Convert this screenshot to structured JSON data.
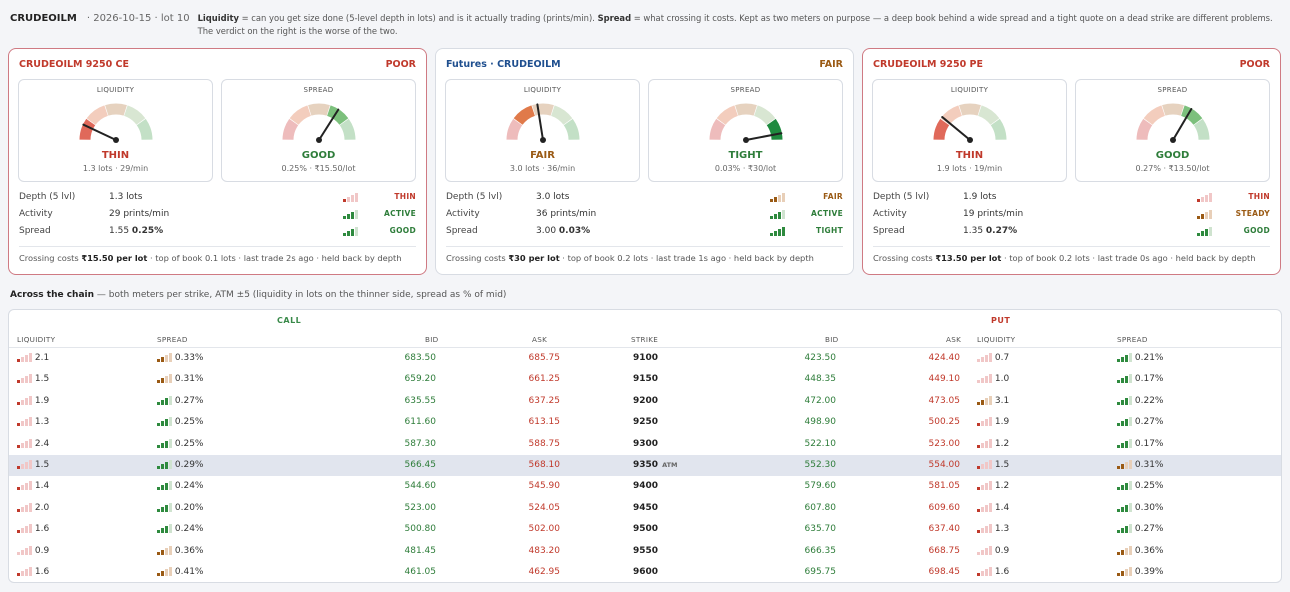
{
  "header": {
    "symbol": "CRUDEOILM",
    "meta": "· 2026-10-15 · lot 10",
    "liquidity_term": "Liquidity",
    "liquidity_text": " = can you get size done (5-level depth in lots) and is it actually trading (prints/min). ",
    "spread_term": "Spread",
    "spread_text": " = what crossing it costs. Kept as two meters on purpose — a deep book behind a wide spread and a tight quote on a dead strike are different problems. The verdict on the right is the worse of the two."
  },
  "colors": {
    "good": "#2e7d3a",
    "fair": "#9a5a14",
    "poor": "#c0392b",
    "blue": "#1f4f8f"
  },
  "cards": [
    {
      "title": "CRUDEOILM 9250 CE",
      "title_tone": "poor",
      "verdict": "POOR",
      "verdict_tone": "poor",
      "liq": {
        "label": "LIQUIDITY",
        "value": "THIN",
        "tone": "poor",
        "sub": "1.3 lots · 29/min",
        "level": 1,
        "needle": 0.14
      },
      "spr": {
        "label": "SPREAD",
        "value": "GOOD",
        "tone": "good",
        "sub": "0.25% · ₹15.50/lot",
        "level": 4,
        "needle": 0.68
      },
      "rows": [
        {
          "label": "Depth (5 lvl)",
          "value": "1.3 lots",
          "bold": "",
          "bars": 1,
          "tag": "THIN",
          "tone": "poor"
        },
        {
          "label": "Activity",
          "value": "29 prints/min",
          "bold": "",
          "bars": 3,
          "tag": "ACTIVE",
          "tone": "good"
        },
        {
          "label": "Spread",
          "value": "1.55 ",
          "bold": "0.25%",
          "bars": 3,
          "tag": "GOOD",
          "tone": "good"
        }
      ],
      "foot_pre": "Crossing costs ",
      "foot_bold": "₹15.50 per lot",
      "foot_post": " · top of book 0.1 lots · last trade 2s ago · held back by depth"
    },
    {
      "title": "Futures · CRUDEOILM",
      "title_tone": "blue",
      "verdict": "FAIR",
      "verdict_tone": "fair",
      "liq": {
        "label": "LIQUIDITY",
        "value": "FAIR",
        "tone": "fair",
        "sub": "3.0 lots · 36/min",
        "level": 2,
        "needle": 0.45
      },
      "spr": {
        "label": "SPREAD",
        "value": "TIGHT",
        "tone": "good",
        "sub": "0.03% · ₹30/lot",
        "level": 5,
        "needle": 0.94
      },
      "rows": [
        {
          "label": "Depth (5 lvl)",
          "value": "3.0 lots",
          "bold": "",
          "bars": 2,
          "tag": "FAIR",
          "tone": "fair"
        },
        {
          "label": "Activity",
          "value": "36 prints/min",
          "bold": "",
          "bars": 3,
          "tag": "ACTIVE",
          "tone": "good"
        },
        {
          "label": "Spread",
          "value": "3.00 ",
          "bold": "0.03%",
          "bars": 4,
          "tag": "TIGHT",
          "tone": "good"
        }
      ],
      "foot_pre": "Crossing costs ",
      "foot_bold": "₹30 per lot",
      "foot_post": " · top of book 0.2 lots · last trade 1s ago · held back by depth"
    },
    {
      "title": "CRUDEOILM 9250 PE",
      "title_tone": "poor",
      "verdict": "POOR",
      "verdict_tone": "poor",
      "liq": {
        "label": "LIQUIDITY",
        "value": "THIN",
        "tone": "poor",
        "sub": "1.9 lots · 19/min",
        "level": 1,
        "needle": 0.22
      },
      "spr": {
        "label": "SPREAD",
        "value": "GOOD",
        "tone": "good",
        "sub": "0.27% · ₹13.50/lot",
        "level": 4,
        "needle": 0.67
      },
      "rows": [
        {
          "label": "Depth (5 lvl)",
          "value": "1.9 lots",
          "bold": "",
          "bars": 1,
          "tag": "THIN",
          "tone": "poor"
        },
        {
          "label": "Activity",
          "value": "19 prints/min",
          "bold": "",
          "bars": 2,
          "tag": "STEADY",
          "tone": "fair"
        },
        {
          "label": "Spread",
          "value": "1.35 ",
          "bold": "0.27%",
          "bars": 3,
          "tag": "GOOD",
          "tone": "good"
        }
      ],
      "foot_pre": "Crossing costs ",
      "foot_bold": "₹13.50 per lot",
      "foot_post": " · top of book 0.2 lots · last trade 0s ago · held back by depth"
    }
  ],
  "chain": {
    "title": "Across the chain",
    "subtitle": " — both meters per strike, ATM ±5 (liquidity in lots on the thinner side, spread as % of mid)",
    "call_label": "CALL",
    "put_label": "PUT",
    "headers": {
      "liquidity": "LIQUIDITY",
      "spread": "SPREAD",
      "bid": "BID",
      "ask": "ASK",
      "strike": "STRIKE"
    },
    "atm_tag": "ATM",
    "rows": [
      {
        "strike": "9100",
        "atm": false,
        "c_liq": "2.1",
        "c_lb": 1,
        "c_spr": "0.33%",
        "c_sb": 2,
        "c_bid": "683.50",
        "c_ask": "685.75",
        "p_bid": "423.50",
        "p_ask": "424.40",
        "p_liq": "0.7",
        "p_lb": 0,
        "p_spr": "0.21%",
        "p_sb": 3
      },
      {
        "strike": "9150",
        "atm": false,
        "c_liq": "1.5",
        "c_lb": 1,
        "c_spr": "0.31%",
        "c_sb": 2,
        "c_bid": "659.20",
        "c_ask": "661.25",
        "p_bid": "448.35",
        "p_ask": "449.10",
        "p_liq": "1.0",
        "p_lb": 0,
        "p_spr": "0.17%",
        "p_sb": 3
      },
      {
        "strike": "9200",
        "atm": false,
        "c_liq": "1.9",
        "c_lb": 1,
        "c_spr": "0.27%",
        "c_sb": 3,
        "c_bid": "635.55",
        "c_ask": "637.25",
        "p_bid": "472.00",
        "p_ask": "473.05",
        "p_liq": "3.1",
        "p_lb": 2,
        "p_spr": "0.22%",
        "p_sb": 3
      },
      {
        "strike": "9250",
        "atm": false,
        "c_liq": "1.3",
        "c_lb": 1,
        "c_spr": "0.25%",
        "c_sb": 3,
        "c_bid": "611.60",
        "c_ask": "613.15",
        "p_bid": "498.90",
        "p_ask": "500.25",
        "p_liq": "1.9",
        "p_lb": 1,
        "p_spr": "0.27%",
        "p_sb": 3
      },
      {
        "strike": "9300",
        "atm": false,
        "c_liq": "2.4",
        "c_lb": 1,
        "c_spr": "0.25%",
        "c_sb": 3,
        "c_bid": "587.30",
        "c_ask": "588.75",
        "p_bid": "522.10",
        "p_ask": "523.00",
        "p_liq": "1.2",
        "p_lb": 1,
        "p_spr": "0.17%",
        "p_sb": 3
      },
      {
        "strike": "9350",
        "atm": true,
        "c_liq": "1.5",
        "c_lb": 1,
        "c_spr": "0.29%",
        "c_sb": 3,
        "c_bid": "566.45",
        "c_ask": "568.10",
        "p_bid": "552.30",
        "p_ask": "554.00",
        "p_liq": "1.5",
        "p_lb": 1,
        "p_spr": "0.31%",
        "p_sb": 2
      },
      {
        "strike": "9400",
        "atm": false,
        "c_liq": "1.4",
        "c_lb": 1,
        "c_spr": "0.24%",
        "c_sb": 3,
        "c_bid": "544.60",
        "c_ask": "545.90",
        "p_bid": "579.60",
        "p_ask": "581.05",
        "p_liq": "1.2",
        "p_lb": 1,
        "p_spr": "0.25%",
        "p_sb": 3
      },
      {
        "strike": "9450",
        "atm": false,
        "c_liq": "2.0",
        "c_lb": 1,
        "c_spr": "0.20%",
        "c_sb": 3,
        "c_bid": "523.00",
        "c_ask": "524.05",
        "p_bid": "607.80",
        "p_ask": "609.60",
        "p_liq": "1.4",
        "p_lb": 1,
        "p_spr": "0.30%",
        "p_sb": 3
      },
      {
        "strike": "9500",
        "atm": false,
        "c_liq": "1.6",
        "c_lb": 1,
        "c_spr": "0.24%",
        "c_sb": 3,
        "c_bid": "500.80",
        "c_ask": "502.00",
        "p_bid": "635.70",
        "p_ask": "637.40",
        "p_liq": "1.3",
        "p_lb": 1,
        "p_spr": "0.27%",
        "p_sb": 3
      },
      {
        "strike": "9550",
        "atm": false,
        "c_liq": "0.9",
        "c_lb": 0,
        "c_spr": "0.36%",
        "c_sb": 2,
        "c_bid": "481.45",
        "c_ask": "483.20",
        "p_bid": "666.35",
        "p_ask": "668.75",
        "p_liq": "0.9",
        "p_lb": 0,
        "p_spr": "0.36%",
        "p_sb": 2
      },
      {
        "strike": "9600",
        "atm": false,
        "c_liq": "1.6",
        "c_lb": 1,
        "c_spr": "0.41%",
        "c_sb": 2,
        "c_bid": "461.05",
        "c_ask": "462.95",
        "p_bid": "695.75",
        "p_ask": "698.45",
        "p_liq": "1.6",
        "p_lb": 1,
        "p_spr": "0.39%",
        "p_sb": 2
      }
    ]
  }
}
